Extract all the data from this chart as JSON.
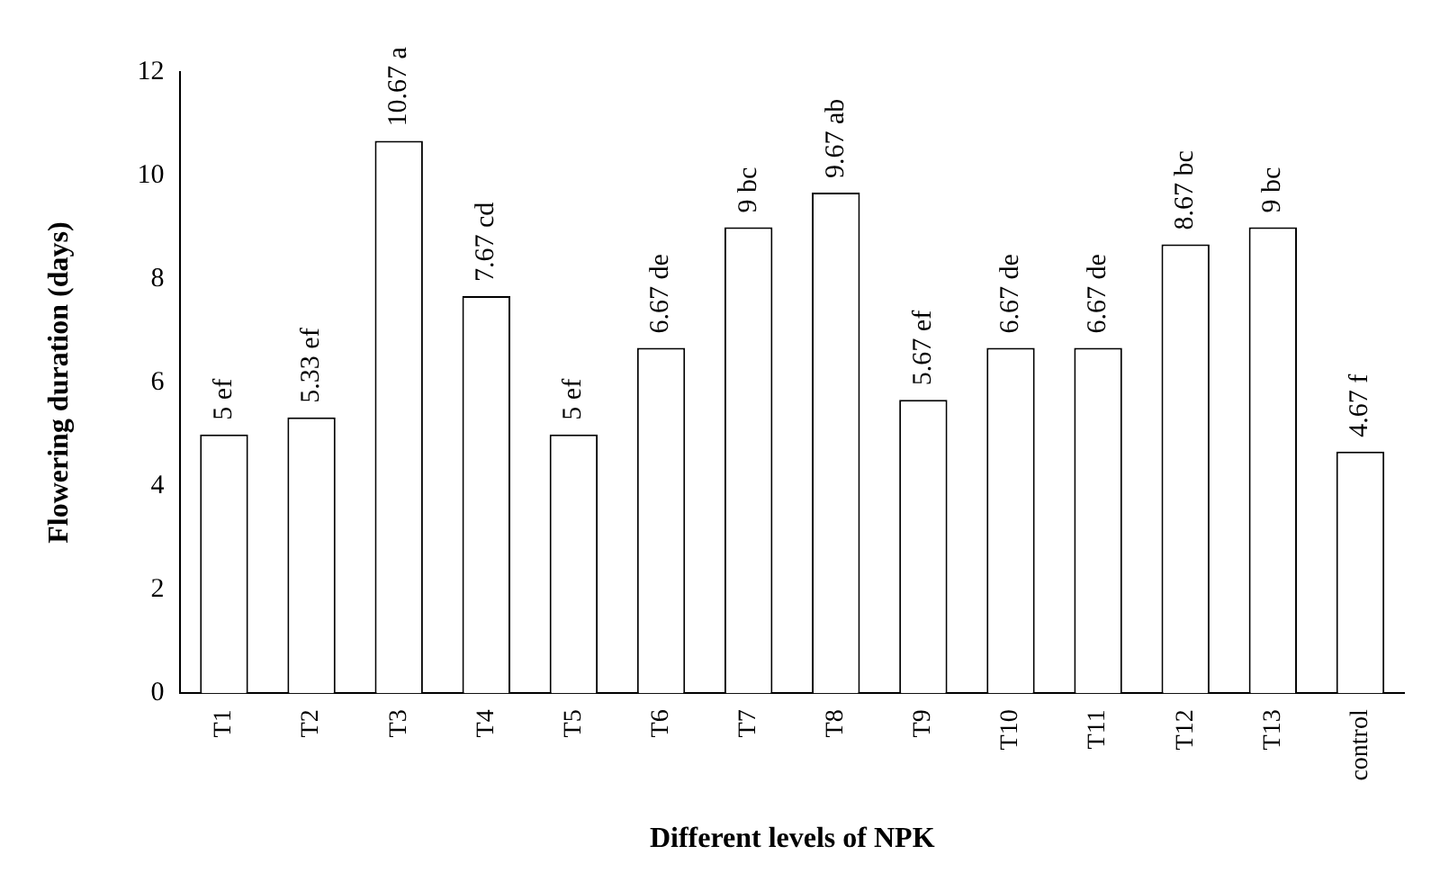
{
  "chart_data": {
    "type": "bar",
    "xlabel": "Different levels of NPK",
    "ylabel": "Flowering duration (days)",
    "categories": [
      "T1",
      "T2",
      "T3",
      "T4",
      "T5",
      "T6",
      "T7",
      "T8",
      "T9",
      "T10",
      "T11",
      "T12",
      "T13",
      "control"
    ],
    "values": [
      5,
      5.33,
      10.67,
      7.67,
      5,
      6.67,
      9,
      9.67,
      5.67,
      6.67,
      6.67,
      8.67,
      9,
      4.67
    ],
    "value_labels": [
      "5 ef",
      "5.33 ef",
      "10.67 a",
      "7.67 cd",
      "5 ef",
      "6.67 de",
      "9 bc",
      "9.67 ab",
      "5.67 ef",
      "6.67 de",
      "6.67 de",
      "8.67 bc",
      "9 bc",
      "4.67 f"
    ],
    "color": "#ffffff",
    "ylim": [
      0,
      12
    ],
    "yticks": [
      0,
      2,
      4,
      6,
      8,
      10,
      12
    ]
  }
}
